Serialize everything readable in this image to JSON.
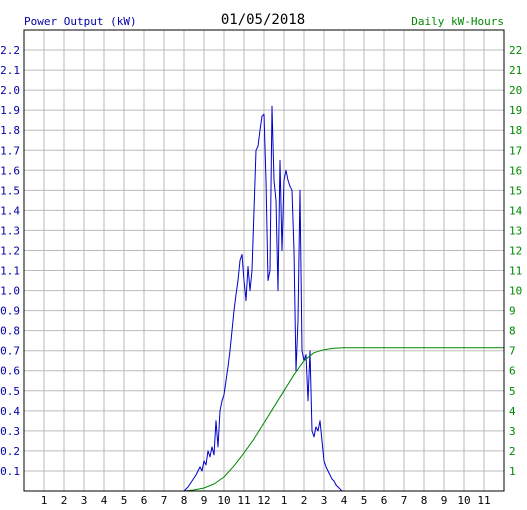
{
  "chart_data": {
    "type": "line",
    "title": "01/05/2018",
    "left_axis_label": "Power Output (kW)",
    "right_axis_label": "Daily kW-Hours",
    "x_tick_labels": [
      "1",
      "2",
      "3",
      "4",
      "5",
      "6",
      "7",
      "8",
      "9",
      "10",
      "11",
      "12",
      "1",
      "2",
      "3",
      "4",
      "5",
      "6",
      "7",
      "8",
      "9",
      "10",
      "11"
    ],
    "x_range_hours": [
      0,
      24
    ],
    "y_left_range": [
      0,
      2.3
    ],
    "y_left_ticks": [
      "0.1",
      "0.2",
      "0.3",
      "0.4",
      "0.5",
      "0.6",
      "0.7",
      "0.8",
      "0.9",
      "1.0",
      "1.1",
      "1.2",
      "1.3",
      "1.4",
      "1.5",
      "1.6",
      "1.7",
      "1.8",
      "1.9",
      "2.0",
      "2.1",
      "2.2"
    ],
    "y_right_range": [
      0,
      23
    ],
    "y_right_ticks": [
      "1",
      "2",
      "3",
      "4",
      "5",
      "6",
      "7",
      "8",
      "9",
      "10",
      "11",
      "12",
      "13",
      "14",
      "15",
      "16",
      "17",
      "18",
      "19",
      "20",
      "21",
      "22"
    ],
    "grid": true,
    "colors": {
      "power": "#0000cc",
      "energy": "#008800",
      "left_axis_text": "#0000aa",
      "right_axis_text": "#008800",
      "grid": "#bbbbbb",
      "frame": "#000000"
    },
    "series": [
      {
        "name": "Power Output (kW)",
        "axis": "left",
        "x": [
          0,
          8.0,
          8.2,
          8.4,
          8.6,
          8.8,
          8.9,
          9.0,
          9.1,
          9.2,
          9.3,
          9.4,
          9.5,
          9.6,
          9.7,
          9.8,
          9.9,
          10.0,
          10.1,
          10.2,
          10.3,
          10.4,
          10.5,
          10.6,
          10.7,
          10.8,
          10.9,
          11.0,
          11.1,
          11.2,
          11.3,
          11.4,
          11.5,
          11.6,
          11.7,
          11.8,
          11.9,
          12.0,
          12.1,
          12.2,
          12.3,
          12.4,
          12.5,
          12.6,
          12.7,
          12.8,
          12.9,
          13.0,
          13.1,
          13.2,
          13.3,
          13.4,
          13.5,
          13.6,
          13.7,
          13.8,
          13.9,
          14.0,
          14.1,
          14.2,
          14.3,
          14.4,
          14.5,
          14.6,
          14.7,
          14.8,
          14.9,
          15.0,
          15.1,
          15.2,
          15.3,
          15.4,
          15.5,
          15.6,
          15.7,
          15.8,
          15.9,
          16.0,
          16.1,
          16.2,
          16.3,
          16.4,
          16.5,
          16.6,
          16.7,
          16.8,
          16.9,
          17.0,
          17.05,
          24
        ],
        "y": [
          0,
          0,
          0.02,
          0.05,
          0.08,
          0.12,
          0.1,
          0.15,
          0.13,
          0.2,
          0.17,
          0.22,
          0.18,
          0.35,
          0.22,
          0.4,
          0.45,
          0.48,
          0.55,
          0.62,
          0.7,
          0.8,
          0.9,
          0.98,
          1.05,
          1.15,
          1.18,
          1.05,
          0.95,
          1.12,
          1.0,
          1.1,
          1.4,
          1.7,
          1.72,
          1.8,
          1.87,
          1.88,
          1.55,
          1.05,
          1.1,
          1.92,
          1.55,
          1.45,
          1.0,
          1.65,
          1.2,
          1.55,
          1.6,
          1.55,
          1.52,
          1.5,
          1.2,
          0.6,
          0.85,
          1.5,
          0.7,
          0.65,
          0.68,
          0.45,
          0.7,
          0.3,
          0.27,
          0.32,
          0.3,
          0.35,
          0.25,
          0.15,
          0.12,
          0.1,
          0.08,
          0.06,
          0.05,
          0.03,
          0.02,
          0.01,
          0,
          0,
          0,
          0,
          0,
          0,
          0,
          0,
          0,
          0,
          0,
          0,
          0,
          0
        ]
      },
      {
        "name": "Daily kW-Hours",
        "axis": "right",
        "x": [
          0,
          8.0,
          8.5,
          9.0,
          9.5,
          10.0,
          10.5,
          11.0,
          11.5,
          12.0,
          12.5,
          13.0,
          13.5,
          14.0,
          14.5,
          15.0,
          15.5,
          16.0,
          16.5,
          17.0,
          24
        ],
        "y": [
          0,
          0,
          0.05,
          0.15,
          0.35,
          0.7,
          1.25,
          1.9,
          2.6,
          3.4,
          4.2,
          5.0,
          5.8,
          6.5,
          6.9,
          7.05,
          7.12,
          7.15,
          7.15,
          7.15,
          7.15
        ]
      }
    ]
  }
}
